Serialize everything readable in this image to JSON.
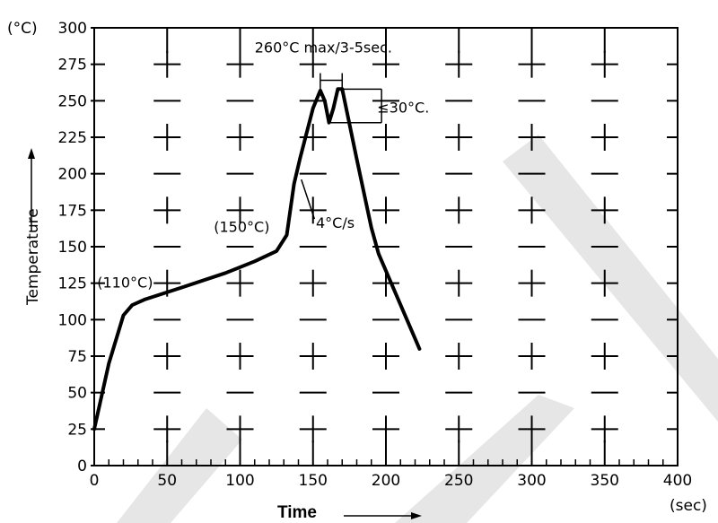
{
  "chart_data": {
    "type": "line",
    "x_unit": "(sec)",
    "y_unit": "(°C)",
    "xlabel": "Time",
    "ylabel": "Temperature",
    "xlim": [
      0,
      400
    ],
    "ylim": [
      0,
      300
    ],
    "x_ticks": [
      "0",
      "50",
      "100",
      "150",
      "200",
      "250",
      "300",
      "350",
      "400"
    ],
    "y_ticks": [
      "0",
      "25",
      "50",
      "75",
      "100",
      "125",
      "150",
      "175",
      "200",
      "225",
      "250",
      "275",
      "300"
    ],
    "grid": true,
    "series": [
      {
        "x": [
          0,
          10,
          20,
          26,
          35,
          60,
          90,
          110,
          125,
          132,
          137,
          141,
          150,
          155,
          158,
          161,
          164,
          167,
          170,
          180,
          190,
          195,
          223
        ],
        "y": [
          25,
          70,
          103,
          110,
          114,
          122,
          132,
          140,
          147,
          158,
          193,
          210,
          245,
          257,
          250,
          235,
          245,
          258,
          258,
          210,
          163,
          145,
          80
        ]
      }
    ],
    "annotations": [
      {
        "text": "260°C  max/3-5sec.",
        "x": 110,
        "y": 283
      },
      {
        "text": "≤30°C.",
        "x": 194,
        "y": 242
      },
      {
        "text": "(110°C)",
        "x": 2,
        "y": 122
      },
      {
        "text": "(150°C)",
        "x": 82,
        "y": 160
      },
      {
        "text": "4°C/s",
        "x": 152,
        "y": 163
      }
    ]
  }
}
